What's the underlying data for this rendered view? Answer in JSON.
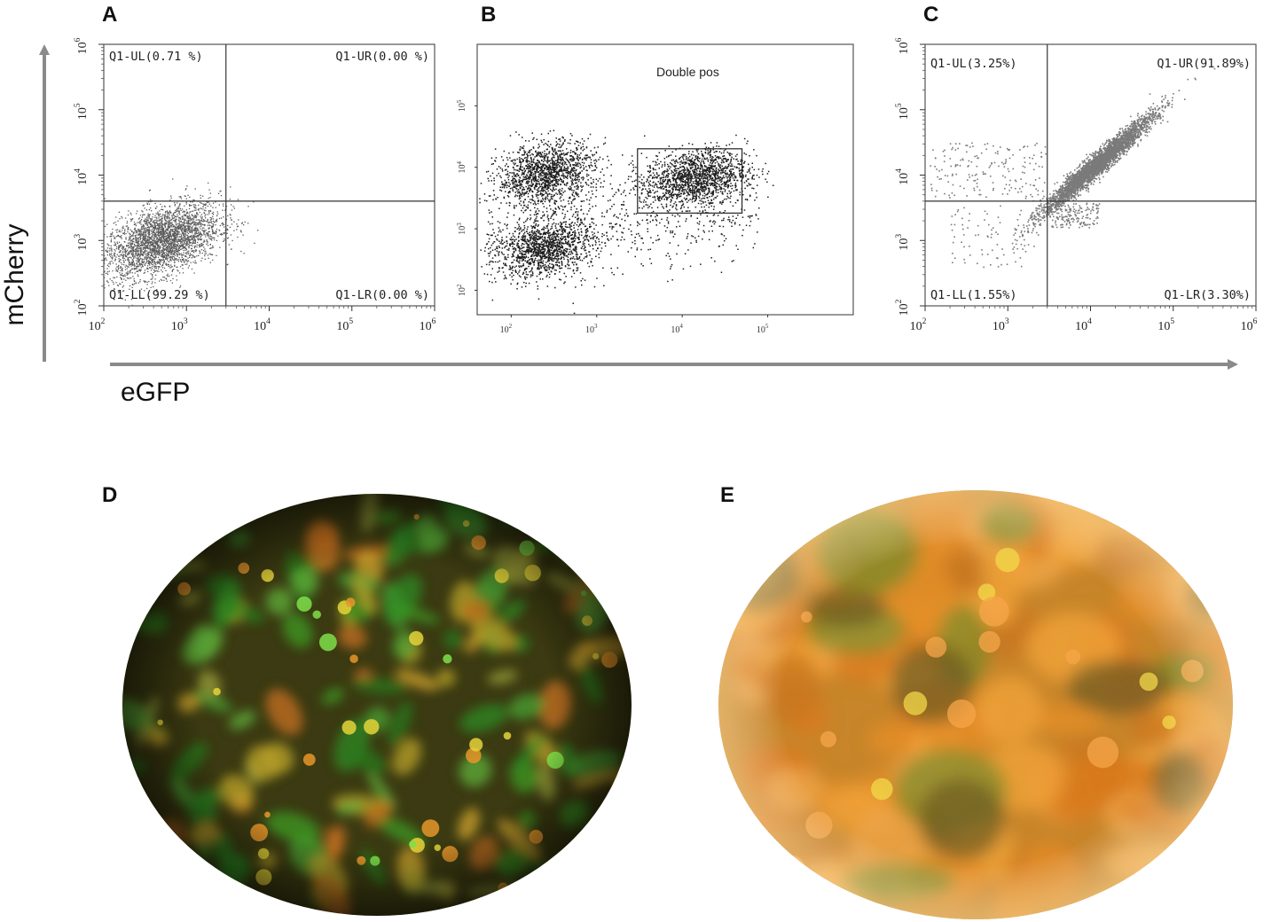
{
  "figure": {
    "axis_titles": {
      "x": "eGFP",
      "y": "mCherry"
    },
    "colors": {
      "axis_gray": "#8a8a8a",
      "dots_A": "#5a5a5a",
      "dots_B": "#1c1c1c",
      "dots_C": "#7a7a7a",
      "micro_green": "#3f9a2c",
      "micro_orange": "#e8962a",
      "micro_yellow": "#e5d33a"
    }
  },
  "panels": {
    "A": {
      "letter": "A",
      "quadrants": {
        "UL": "Q1-UL(0.71 %)",
        "UR": "Q1-UR(0.00 %)",
        "LL": "Q1-LL(99.29 %)",
        "LR": "Q1-LR(0.00 %)"
      }
    },
    "B": {
      "letter": "B",
      "gate_label": "Double pos"
    },
    "C": {
      "letter": "C",
      "quadrants": {
        "UL": "Q1-UL(3.25%)",
        "UR": "Q1-UR(91.89%)",
        "LL": "Q1-LL(1.55%)",
        "LR": "Q1-LR(3.30%)"
      }
    },
    "D": {
      "letter": "D",
      "image": "fluorescence-micrograph-green-orange"
    },
    "E": {
      "letter": "E",
      "image": "fluorescence-micrograph-orange"
    }
  },
  "chart_data": [
    {
      "panel": "A",
      "type": "scatter",
      "xlabel": "eGFP",
      "ylabel": "mCherry",
      "xscale": "log",
      "yscale": "log",
      "xlim": [
        100,
        1000000
      ],
      "ylim": [
        100,
        1000000
      ],
      "xticks": [
        "10^2",
        "10^3",
        "10^4",
        "10^5",
        "10^6"
      ],
      "yticks": [
        "10^2",
        "10^3",
        "10^4",
        "10^5",
        "10^6"
      ],
      "gates": {
        "x": 3000,
        "y": 4000
      },
      "quadrants": {
        "UL": 0.71,
        "UR": 0.0,
        "LL": 99.29,
        "LR": 0.0
      },
      "population": [
        {
          "center": [
            500,
            1000
          ],
          "spread_decades": [
            0.35,
            0.28
          ],
          "share": 1.0
        }
      ]
    },
    {
      "panel": "B",
      "type": "scatter",
      "xscale": "log",
      "yscale": "log",
      "xlim": [
        40,
        1000000
      ],
      "ylim": [
        40,
        1000000
      ],
      "xticks": [
        "10^2",
        "10^3",
        "10^4",
        "10^5"
      ],
      "yticks": [
        "10^2",
        "10^3",
        "10^4",
        "10^5"
      ],
      "gate": {
        "label": "Double pos",
        "x": [
          3000,
          50000
        ],
        "y": [
          1800,
          20000
        ]
      },
      "populations": [
        {
          "center": [
            250,
            8000
          ],
          "spread_decades": [
            0.28,
            0.25
          ],
          "share": 0.35
        },
        {
          "center": [
            250,
            500
          ],
          "spread_decades": [
            0.28,
            0.22
          ],
          "share": 0.3
        },
        {
          "center": [
            14000,
            7000
          ],
          "spread_decades": [
            0.3,
            0.22
          ],
          "share": 0.35
        }
      ]
    },
    {
      "panel": "C",
      "type": "scatter",
      "xscale": "log",
      "yscale": "log",
      "xlim": [
        100,
        1000000
      ],
      "ylim": [
        100,
        1000000
      ],
      "xticks": [
        "10^2",
        "10^3",
        "10^4",
        "10^5",
        "10^6"
      ],
      "yticks": [
        "10^2",
        "10^3",
        "10^4",
        "10^5",
        "10^6"
      ],
      "gates": {
        "x": 3000,
        "y": 4000
      },
      "quadrants": {
        "UL": 3.25,
        "UR": 91.89,
        "LL": 1.55,
        "LR": 3.3
      },
      "population": [
        {
          "center": [
            12000,
            15000
          ],
          "trend": "diagonal",
          "share": 0.92
        }
      ]
    }
  ]
}
